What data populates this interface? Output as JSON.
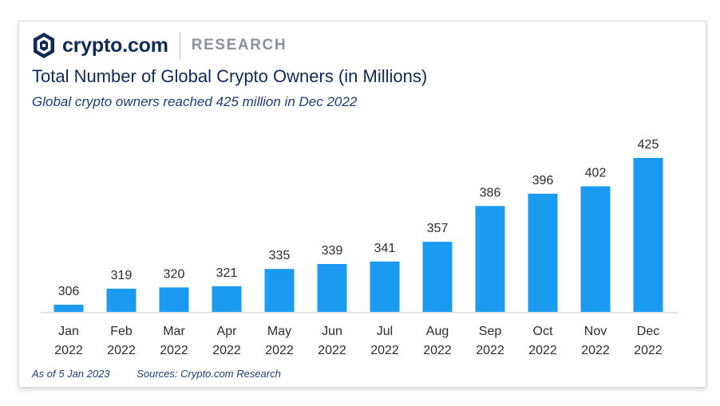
{
  "brand": {
    "name": "crypto.com",
    "section": "RESEARCH",
    "color": "#0f2a57"
  },
  "footer": {
    "as_of": "As of 5 Jan 2023",
    "sources": "Sources: Crypto.com Research"
  },
  "chart_data": {
    "type": "bar",
    "title": "Total Number of Global Crypto Owners (in Millions)",
    "subtitle": "Global crypto owners reached 425 million in Dec 2022",
    "categories": [
      [
        "Jan",
        "2022"
      ],
      [
        "Feb",
        "2022"
      ],
      [
        "Mar",
        "2022"
      ],
      [
        "Apr",
        "2022"
      ],
      [
        "May",
        "2022"
      ],
      [
        "Jun",
        "2022"
      ],
      [
        "Jul",
        "2022"
      ],
      [
        "Aug",
        "2022"
      ],
      [
        "Sep",
        "2022"
      ],
      [
        "Oct",
        "2022"
      ],
      [
        "Nov",
        "2022"
      ],
      [
        "Dec",
        "2022"
      ]
    ],
    "values": [
      306,
      319,
      320,
      321,
      335,
      339,
      341,
      357,
      386,
      396,
      402,
      425
    ],
    "xlabel": "",
    "ylabel": "",
    "ylim": [
      300,
      425
    ],
    "grid": false,
    "legend": "none",
    "bar_color": "#1a9af0"
  }
}
